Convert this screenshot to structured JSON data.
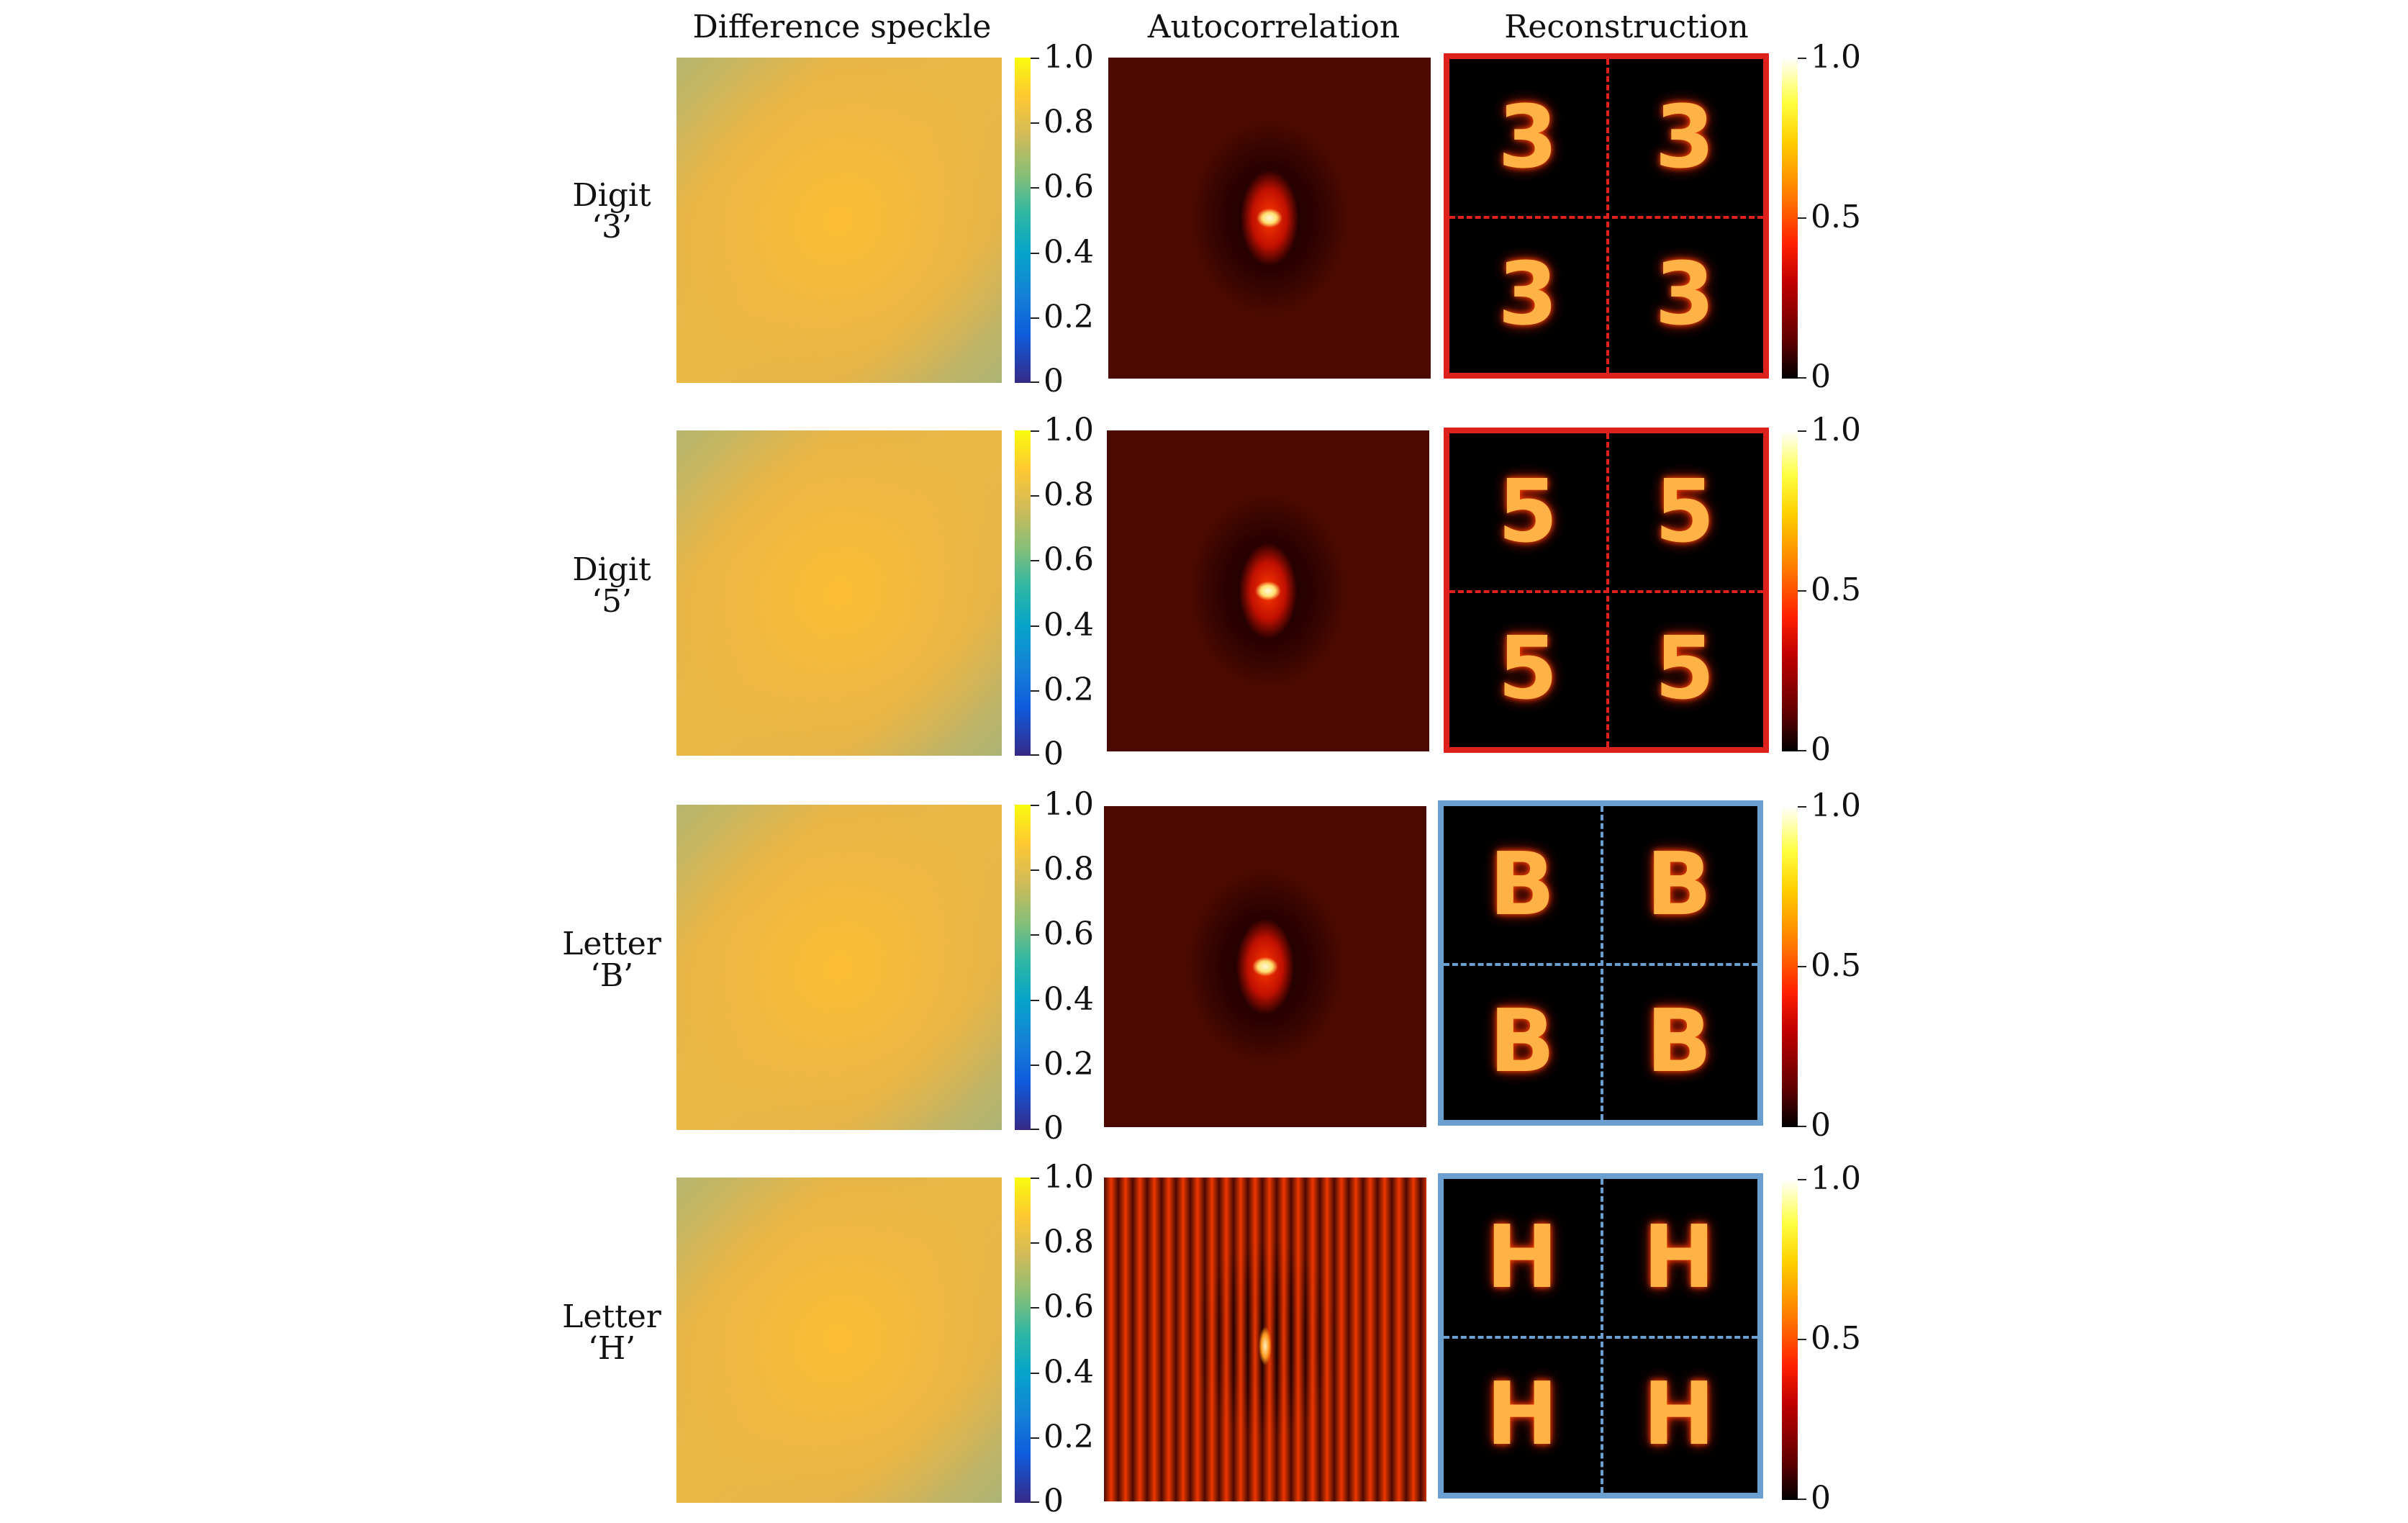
{
  "headers": {
    "speckle": "Difference speckle",
    "autocorrelation": "Autocorrelation",
    "reconstruction": "Reconstruction"
  },
  "rows": [
    {
      "label_line1": "Digit",
      "label_line2": "‘3’",
      "glyph": "3",
      "frame_color": "#e0201c"
    },
    {
      "label_line1": "Digit",
      "label_line2": "‘5’",
      "glyph": "5",
      "frame_color": "#e0201c"
    },
    {
      "label_line1": "Letter",
      "label_line2": "‘B’",
      "glyph": "B",
      "frame_color": "#6a9fd0"
    },
    {
      "label_line1": "Letter",
      "label_line2": "‘H’",
      "glyph": "H",
      "frame_color": "#6a9fd0"
    }
  ],
  "speckle_colorbar_ticks": [
    "1.0",
    "0.8",
    "0.6",
    "0.4",
    "0.2",
    "0"
  ],
  "recon_colorbar_ticks": [
    "1.0",
    "0.5",
    "0"
  ],
  "colormaps": {
    "speckle": "parula",
    "reconstruction": "hot"
  }
}
